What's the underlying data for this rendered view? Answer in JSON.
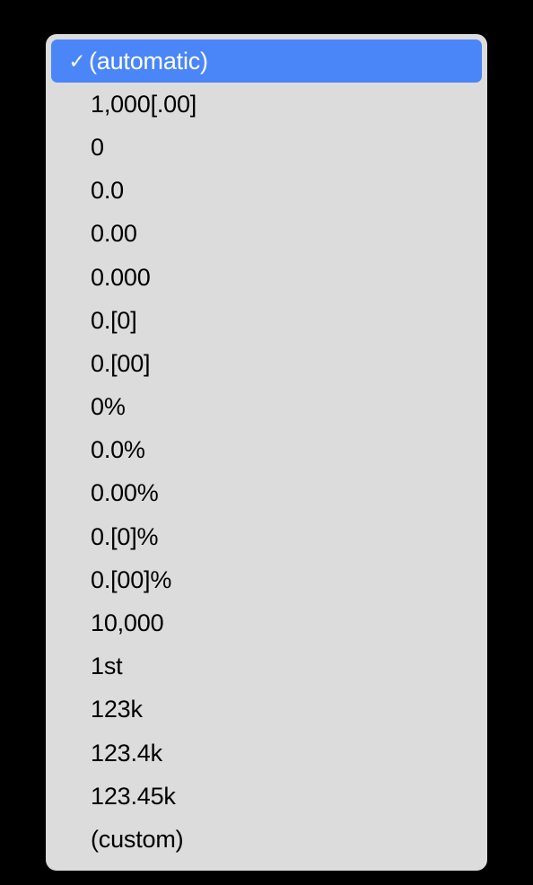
{
  "dropdown": {
    "background_color": "#dcdcdc",
    "selected_bg_color": "#4a86f7",
    "selected_text_color": "#ffffff",
    "text_color": "#000000",
    "border_radius": 12,
    "item_height": 48,
    "font_size": 27,
    "items": [
      {
        "label": "(automatic)",
        "selected": true
      },
      {
        "label": "1,000[.00]",
        "selected": false
      },
      {
        "label": "0",
        "selected": false
      },
      {
        "label": "0.0",
        "selected": false
      },
      {
        "label": "0.00",
        "selected": false
      },
      {
        "label": "0.000",
        "selected": false
      },
      {
        "label": "0.[0]",
        "selected": false
      },
      {
        "label": "0.[00]",
        "selected": false
      },
      {
        "label": "0%",
        "selected": false
      },
      {
        "label": "0.0%",
        "selected": false
      },
      {
        "label": "0.00%",
        "selected": false
      },
      {
        "label": "0.[0]%",
        "selected": false
      },
      {
        "label": "0.[00]%",
        "selected": false
      },
      {
        "label": "10,000",
        "selected": false
      },
      {
        "label": "1st",
        "selected": false
      },
      {
        "label": "123k",
        "selected": false
      },
      {
        "label": "123.4k",
        "selected": false
      },
      {
        "label": "123.45k",
        "selected": false
      },
      {
        "label": "(custom)",
        "selected": false
      }
    ]
  }
}
